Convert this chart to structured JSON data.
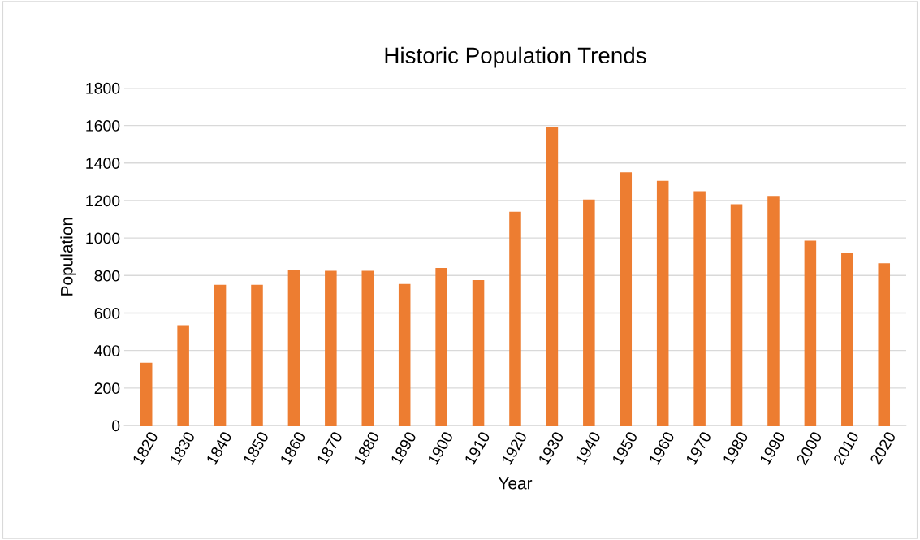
{
  "chart_data": {
    "type": "bar",
    "title": "Historic Population Trends",
    "xlabel": "Year",
    "ylabel": "Population",
    "categories": [
      "1820",
      "1830",
      "1840",
      "1850",
      "1860",
      "1870",
      "1880",
      "1890",
      "1900",
      "1910",
      "1920",
      "1930",
      "1940",
      "1950",
      "1960",
      "1970",
      "1980",
      "1990",
      "2000",
      "2010",
      "2020"
    ],
    "values": [
      335,
      535,
      750,
      750,
      830,
      825,
      825,
      755,
      840,
      775,
      1140,
      1590,
      1205,
      1350,
      1305,
      1250,
      1180,
      1225,
      985,
      920,
      865
    ],
    "color": "#ed7d31",
    "ylim": [
      0,
      1800
    ],
    "yticks": [
      0,
      200,
      400,
      600,
      800,
      1000,
      1200,
      1400,
      1600,
      1800
    ],
    "grid": "y",
    "legend": false
  }
}
